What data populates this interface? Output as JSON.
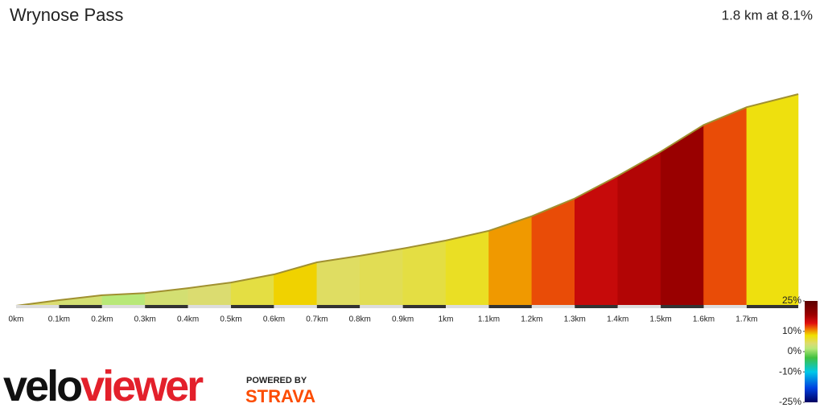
{
  "chart_data": {
    "type": "gradient-profile",
    "title": "Wrynose Pass",
    "subtitle": "1.8 km at 8.1%",
    "distance": [
      0,
      0.1,
      0.2,
      0.3,
      0.4,
      0.5,
      0.6,
      0.7,
      0.8,
      0.9,
      1.0,
      1.1,
      1.2,
      1.3,
      1.4,
      1.5,
      1.6,
      1.7,
      1.82
    ],
    "gradient": [
      3.9,
      3.4,
      1.5,
      3.4,
      3.9,
      5.6,
      8.4,
      4.5,
      5.0,
      5.6,
      6.7,
      10.1,
      12.3,
      15.6,
      16.8,
      18.5,
      12.3,
      7.5
    ],
    "xlim": [
      0,
      1.82
    ],
    "xticks": [
      {
        "value": 0,
        "label": "0km"
      },
      {
        "value": 0.1,
        "label": "0.1km"
      },
      {
        "value": 0.2,
        "label": "0.2km"
      },
      {
        "value": 0.3,
        "label": "0.3km"
      },
      {
        "value": 0.4,
        "label": "0.4km"
      },
      {
        "value": 0.5,
        "label": "0.5km"
      },
      {
        "value": 0.6,
        "label": "0.6km"
      },
      {
        "value": 0.7,
        "label": "0.7km"
      },
      {
        "value": 0.8,
        "label": "0.8km"
      },
      {
        "value": 0.9,
        "label": "0.9km"
      },
      {
        "value": 1,
        "label": "1km"
      },
      {
        "value": 1.1,
        "label": "1.1km"
      },
      {
        "value": 1.2,
        "label": "1.2km"
      },
      {
        "value": 1.3,
        "label": "1.3km"
      },
      {
        "value": 1.4,
        "label": "1.4km"
      },
      {
        "value": 1.5,
        "label": "1.5km"
      },
      {
        "value": 1.6,
        "label": "1.6km"
      },
      {
        "value": 1.7,
        "label": "1.7km"
      }
    ],
    "color_scale": {
      "lim": [
        -25,
        25
      ],
      "ticks": [
        {
          "value": 25,
          "label": "25%"
        },
        {
          "value": 10,
          "label": "10%"
        },
        {
          "value": 0,
          "label": "0%"
        },
        {
          "value": -10,
          "label": "-10%"
        },
        {
          "value": -25,
          "label": "-25%"
        }
      ],
      "stops": [
        {
          "value": 25,
          "color": "#5a0000"
        },
        {
          "value": 18,
          "color": "#9e0000"
        },
        {
          "value": 14,
          "color": "#e01010"
        },
        {
          "value": 11,
          "color": "#f07a00"
        },
        {
          "value": 8,
          "color": "#f0e000"
        },
        {
          "value": 4,
          "color": "#dcdc70"
        },
        {
          "value": 1.5,
          "color": "#b8e878"
        },
        {
          "value": -3,
          "color": "#40c040"
        },
        {
          "value": -10,
          "color": "#00c8e8"
        },
        {
          "value": -18,
          "color": "#0040e0"
        },
        {
          "value": -25,
          "color": "#000060"
        }
      ]
    }
  },
  "logo": {
    "velo": "velo",
    "viewer": "viewer",
    "powered": "POWERED BY",
    "strava": "STRAVA"
  }
}
